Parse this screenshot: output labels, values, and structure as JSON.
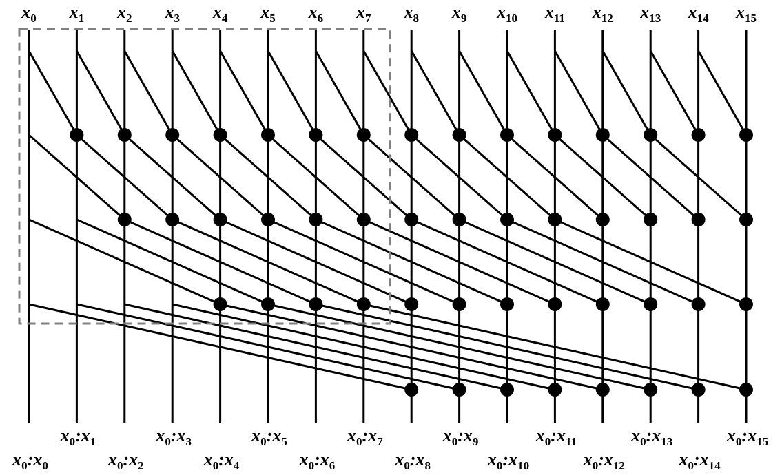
{
  "diagram": {
    "type": "prefix-network",
    "variable": "x",
    "input_count": 16,
    "inputs": [
      "0",
      "1",
      "2",
      "3",
      "4",
      "5",
      "6",
      "7",
      "8",
      "9",
      "10",
      "11",
      "12",
      "13",
      "14",
      "15"
    ],
    "stage_distances": [
      1,
      2,
      4,
      8
    ],
    "output_prefix": "x",
    "output_first_index": "0",
    "output_separator": ":",
    "highlight_box": {
      "covers_inputs": [
        0,
        7
      ],
      "covers_stages": [
        1,
        3
      ],
      "style": "dashed"
    },
    "colors": {
      "wire": "#000000",
      "node": "#000000",
      "highlight": "#808080",
      "background": "#ffffff"
    }
  }
}
